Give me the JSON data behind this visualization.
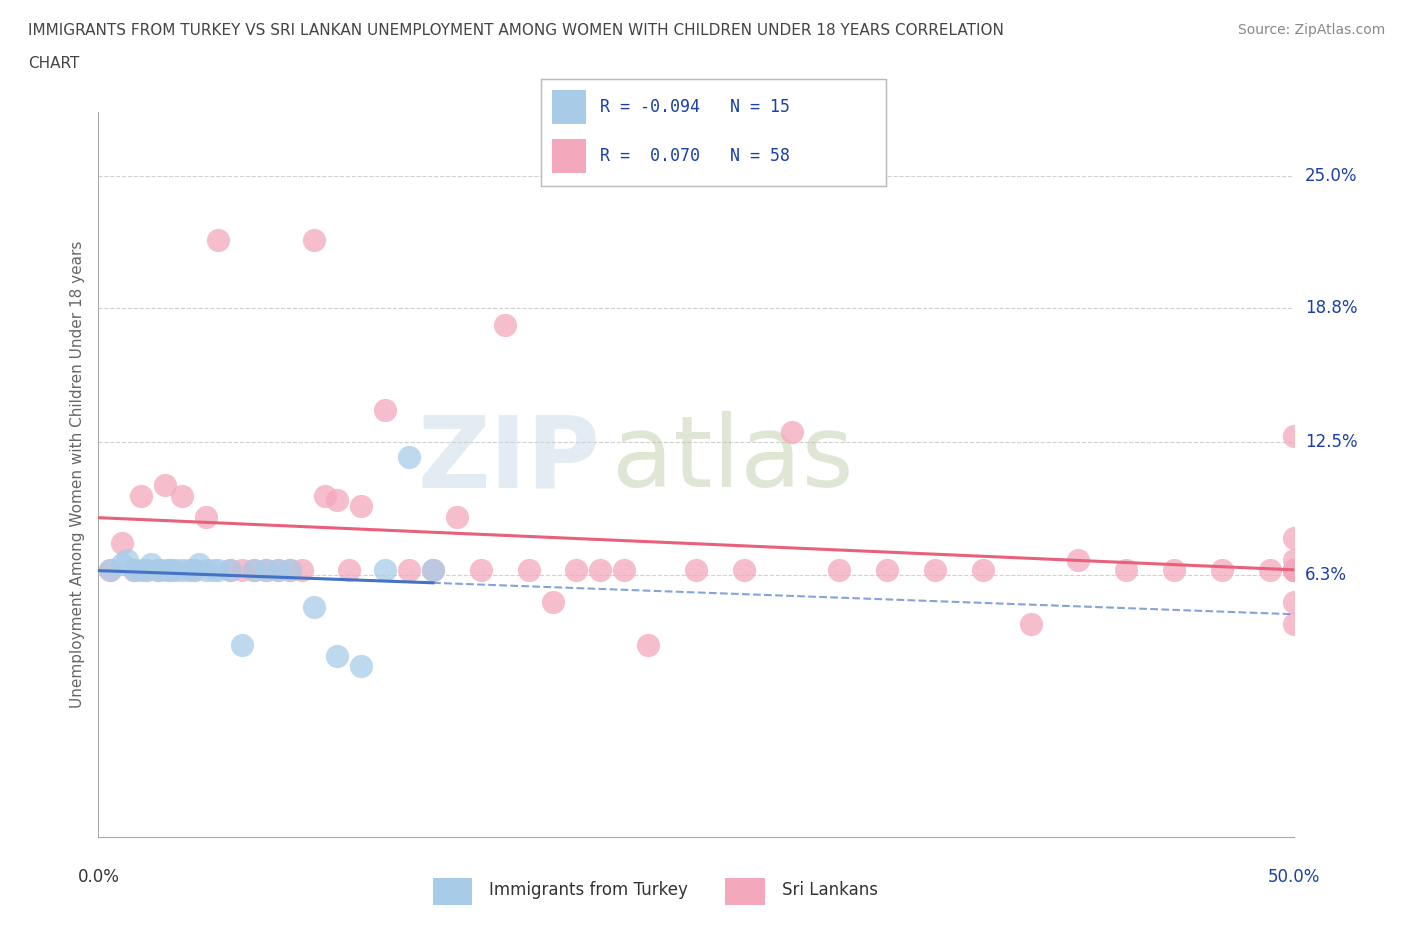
{
  "title_line1": "IMMIGRANTS FROM TURKEY VS SRI LANKAN UNEMPLOYMENT AMONG WOMEN WITH CHILDREN UNDER 18 YEARS CORRELATION",
  "title_line2": "CHART",
  "source": "Source: ZipAtlas.com",
  "ylabel": "Unemployment Among Women with Children Under 18 years",
  "ytick_labels": [
    "25.0%",
    "18.8%",
    "12.5%",
    "6.3%"
  ],
  "ytick_values": [
    0.25,
    0.188,
    0.125,
    0.063
  ],
  "xlim": [
    0.0,
    0.5
  ],
  "ylim": [
    -0.06,
    0.28
  ],
  "turkey_color": "#a8cce8",
  "srilanka_color": "#f4a8bc",
  "turkey_line_color": "#4472c4",
  "srilanka_line_color": "#e8607a",
  "watermark_zip": "ZIP",
  "watermark_atlas": "atlas",
  "background_color": "#ffffff",
  "grid_color": "#d0d0d0",
  "turkey_x": [
    0.005,
    0.01,
    0.012,
    0.015,
    0.018,
    0.02,
    0.022,
    0.025,
    0.028,
    0.03,
    0.032,
    0.035,
    0.038,
    0.04,
    0.042,
    0.045,
    0.048,
    0.05,
    0.055,
    0.06,
    0.065,
    0.07,
    0.075,
    0.08,
    0.09,
    0.1,
    0.11,
    0.12,
    0.13,
    0.14
  ],
  "turkey_y": [
    0.065,
    0.068,
    0.07,
    0.065,
    0.065,
    0.065,
    0.068,
    0.065,
    0.065,
    0.065,
    0.065,
    0.065,
    0.065,
    0.065,
    0.068,
    0.065,
    0.065,
    0.065,
    0.065,
    0.03,
    0.065,
    0.065,
    0.065,
    0.065,
    0.048,
    0.025,
    0.02,
    0.065,
    0.118,
    0.065
  ],
  "srilanka_x": [
    0.005,
    0.01,
    0.015,
    0.018,
    0.02,
    0.025,
    0.028,
    0.03,
    0.035,
    0.04,
    0.045,
    0.05,
    0.055,
    0.06,
    0.065,
    0.07,
    0.075,
    0.08,
    0.085,
    0.09,
    0.095,
    0.1,
    0.105,
    0.11,
    0.12,
    0.13,
    0.14,
    0.15,
    0.16,
    0.17,
    0.18,
    0.19,
    0.2,
    0.21,
    0.22,
    0.23,
    0.25,
    0.27,
    0.29,
    0.31,
    0.33,
    0.35,
    0.37,
    0.39,
    0.41,
    0.43,
    0.45,
    0.47,
    0.49,
    0.5,
    0.5,
    0.5,
    0.5,
    0.5,
    0.5,
    0.5,
    0.5,
    0.5
  ],
  "srilanka_y": [
    0.065,
    0.078,
    0.065,
    0.1,
    0.065,
    0.065,
    0.105,
    0.065,
    0.1,
    0.065,
    0.09,
    0.22,
    0.065,
    0.065,
    0.065,
    0.065,
    0.065,
    0.065,
    0.065,
    0.22,
    0.1,
    0.098,
    0.065,
    0.095,
    0.14,
    0.065,
    0.065,
    0.09,
    0.065,
    0.18,
    0.065,
    0.05,
    0.065,
    0.065,
    0.065,
    0.03,
    0.065,
    0.065,
    0.13,
    0.065,
    0.065,
    0.065,
    0.065,
    0.04,
    0.07,
    0.065,
    0.065,
    0.065,
    0.065,
    0.065,
    0.128,
    0.065,
    0.065,
    0.07,
    0.04,
    0.05,
    0.065,
    0.08
  ],
  "legend_text_color": "#1a3fa8",
  "xtick_color": "#1a3fa8",
  "bottom_legend_labels": [
    "Immigrants from Turkey",
    "Sri Lankans"
  ]
}
